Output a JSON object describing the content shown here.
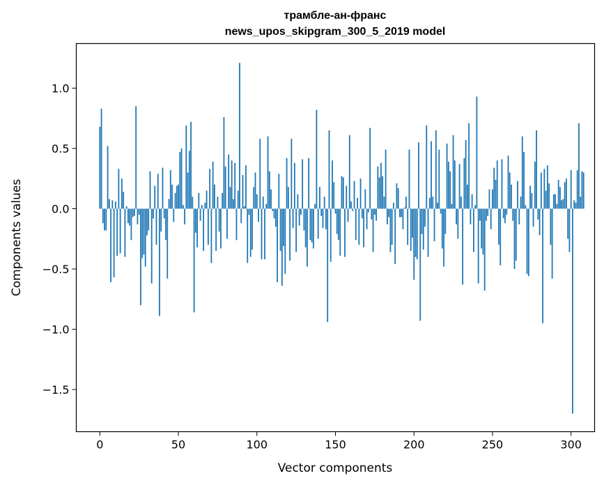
{
  "chart_data": {
    "type": "bar",
    "title": "трамбле-ан-франс",
    "subtitle": "news_upos_skipgram_300_5_2019 model",
    "xlabel": "Vector components",
    "ylabel": "Components values",
    "xlim": [
      -15,
      315
    ],
    "ylim": [
      -1.85,
      1.37
    ],
    "xticks": [
      0,
      50,
      100,
      150,
      200,
      250,
      300
    ],
    "xtick_labels": [
      "0",
      "50",
      "100",
      "150",
      "200",
      "250",
      "300"
    ],
    "yticks": [
      -1.5,
      -1.0,
      -0.5,
      0.0,
      0.5,
      1.0
    ],
    "ytick_labels": [
      "−1.5",
      "−1.0",
      "−0.5",
      "0.0",
      "0.5",
      "1.0"
    ],
    "grid": false,
    "bar_color": "#1f77b4",
    "values": [
      0.68,
      0.83,
      -0.12,
      -0.18,
      -0.18,
      0.52,
      0.08,
      -0.61,
      0.07,
      -0.57,
      0.06,
      -0.39,
      0.33,
      -0.37,
      0.25,
      0.14,
      -0.4,
      0.02,
      -0.12,
      -0.14,
      -0.26,
      -0.07,
      -0.06,
      0.85,
      -0.13,
      -0.05,
      -0.8,
      -0.41,
      -0.38,
      -0.48,
      -0.22,
      -0.18,
      0.31,
      -0.62,
      -0.08,
      0.19,
      -0.3,
      0.29,
      -0.89,
      -0.19,
      0.34,
      -0.08,
      -0.26,
      -0.58,
      0.08,
      0.32,
      0.2,
      -0.11,
      0.13,
      0.19,
      0.2,
      0.47,
      0.5,
      0.03,
      -0.13,
      0.69,
      0.3,
      0.48,
      0.72,
      0.1,
      -0.86,
      -0.2,
      -0.32,
      0.13,
      -0.1,
      0.03,
      -0.35,
      0.05,
      0.15,
      -0.3,
      0.33,
      -0.45,
      0.39,
      0.2,
      -0.35,
      0.1,
      -0.19,
      -0.33,
      0.13,
      0.76,
      0.35,
      -0.25,
      0.45,
      0.18,
      0.4,
      0.08,
      0.38,
      -0.26,
      0.15,
      1.21,
      -0.12,
      0.28,
      0.02,
      0.36,
      -0.45,
      -0.05,
      -0.4,
      -0.34,
      0.18,
      0.3,
      0.12,
      -0.11,
      0.58,
      -0.42,
      0.1,
      -0.42,
      0.04,
      0.6,
      0.31,
      0.16,
      -0.02,
      -0.08,
      -0.15,
      -0.61,
      0.29,
      -0.35,
      -0.64,
      -0.31,
      -0.54,
      0.42,
      0.18,
      -0.43,
      0.58,
      -0.16,
      0.38,
      -0.36,
      0.12,
      -0.14,
      -0.05,
      0.41,
      -0.18,
      -0.32,
      -0.48,
      0.42,
      -0.26,
      -0.28,
      -0.33,
      0.04,
      0.82,
      -0.25,
      0.18,
      -0.06,
      -0.16,
      0.1,
      -0.17,
      -0.94,
      0.65,
      -0.44,
      0.4,
      0.22,
      -0.04,
      -0.21,
      -0.26,
      -0.39,
      0.27,
      0.26,
      -0.4,
      0.19,
      -0.11,
      0.61,
      0.06,
      -0.02,
      0.23,
      -0.26,
      0.09,
      -0.3,
      0.25,
      -0.08,
      -0.32,
      0.16,
      -0.17,
      -0.03,
      0.67,
      -0.09,
      -0.36,
      -0.05,
      -0.1,
      0.35,
      0.26,
      0.38,
      0.27,
      0.1,
      0.49,
      -0.13,
      -0.07,
      -0.36,
      -0.3,
      0.05,
      -0.46,
      0.21,
      0.17,
      -0.07,
      -0.07,
      -0.17,
      0.01,
      0.1,
      -0.3,
      0.49,
      -0.35,
      -0.24,
      -0.59,
      -0.4,
      -0.42,
      0.55,
      -0.93,
      -0.21,
      -0.34,
      -0.15,
      0.69,
      -0.4,
      0.09,
      0.56,
      0.1,
      -0.27,
      0.65,
      0.05,
      0.49,
      -0.04,
      -0.33,
      -0.48,
      -0.21,
      0.54,
      0.39,
      0.31,
      0.04,
      0.61,
      0.4,
      -0.13,
      -0.25,
      0.37,
      0.1,
      -0.63,
      0.42,
      0.57,
      0.2,
      0.71,
      -0.13,
      0.12,
      -0.36,
      0.03,
      0.93,
      -0.62,
      -0.1,
      -0.33,
      -0.38,
      -0.68,
      -0.1,
      -0.06,
      0.16,
      -0.17,
      0.16,
      0.34,
      0.24,
      0.4,
      -0.3,
      -0.47,
      0.41,
      -0.08,
      -0.12,
      -0.05,
      0.44,
      0.3,
      0.2,
      -0.1,
      -0.5,
      -0.43,
      0.23,
      -0.13,
      0.1,
      0.6,
      0.47,
      0.03,
      -0.54,
      -0.56,
      0.19,
      0.13,
      -0.15,
      0.39,
      0.65,
      -0.09,
      -0.22,
      0.3,
      -0.95,
      0.33,
      0.15,
      0.36,
      0.21,
      -0.3,
      -0.58,
      0.12,
      0.12,
      0.04,
      0.24,
      0.18,
      0.07,
      0.08,
      0.22,
      0.25,
      -0.25,
      -0.36,
      0.32,
      -1.7,
      0.07,
      0.05,
      0.32,
      0.71,
      0.1,
      0.31,
      0.3
    ]
  }
}
